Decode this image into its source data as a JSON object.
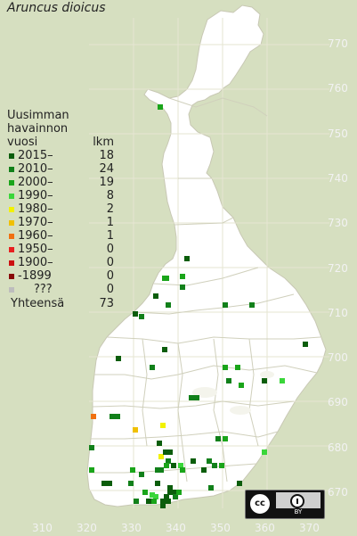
{
  "title": "Aruncus dioicus",
  "legend": {
    "heading_lines": [
      "Uusimman",
      "havainnon"
    ],
    "col_label": "vuosi",
    "col_count": "lkm",
    "rows": [
      {
        "label": "2015–",
        "count": "18",
        "color": "#0b5d0b"
      },
      {
        "label": "2010–",
        "count": "24",
        "color": "#11801a"
      },
      {
        "label": "2000–",
        "count": "19",
        "color": "#1aa51a"
      },
      {
        "label": "1990–",
        "count": "8",
        "color": "#3ad63a"
      },
      {
        "label": "1980–",
        "count": "2",
        "color": "#f2f200"
      },
      {
        "label": "1970–",
        "count": "1",
        "color": "#f0c000"
      },
      {
        "label": "1960–",
        "count": "1",
        "color": "#f07010"
      },
      {
        "label": "1950–",
        "count": "0",
        "color": "#e82020"
      },
      {
        "label": "1900–",
        "count": "0",
        "color": "#cc1010"
      },
      {
        "label": "-1899",
        "count": "0",
        "color": "#880808"
      },
      {
        "label": "???",
        "count": "0",
        "color": "#bdbdbd"
      }
    ],
    "total_label": "Yhteensä",
    "total_count": "73"
  },
  "y_axis_labels": [
    "770",
    "760",
    "750",
    "740",
    "730",
    "720",
    "710",
    "700",
    "690",
    "680",
    "670"
  ],
  "x_axis_labels": [
    "310",
    "320",
    "330",
    "340",
    "350",
    "360",
    "370"
  ],
  "license": {
    "cc_text": "cc",
    "by_text": "BY"
  },
  "colors": {
    "background": "#d6dfc0",
    "land": "#ffffff",
    "grid": "#e3e3d0",
    "border": "#c8c8b4"
  }
}
